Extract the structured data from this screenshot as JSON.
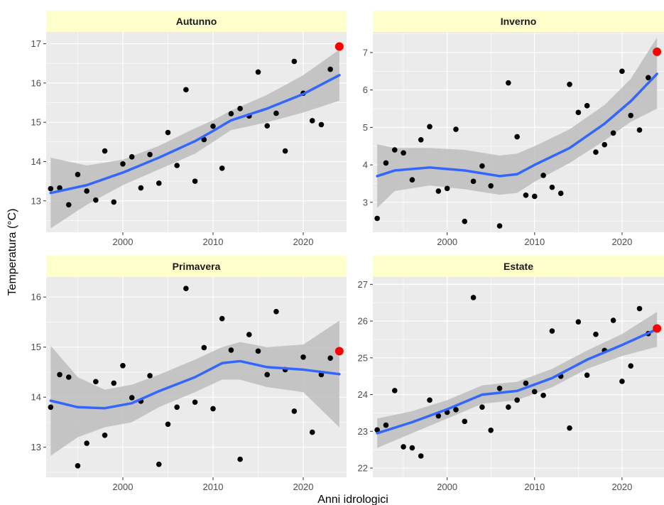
{
  "chart_data": {
    "type": "scatter",
    "xlabel": "Anni idrologici",
    "ylabel": "Temperatura (°C)",
    "xlim": [
      1991.5,
      2024.8
    ],
    "x_ticks": [
      2000,
      2010,
      2020
    ],
    "grid": true,
    "colors": {
      "panel_bg": "#ebebeb",
      "grid": "#ffffff",
      "strip_bg": "#ffffcc",
      "point": "#000000",
      "highlight": "#ff0000",
      "smooth": "#3366ff",
      "ribbon": "#bdbdbd"
    },
    "panels": [
      {
        "title": "Autunno",
        "ylim": [
          12.2,
          17.3
        ],
        "y_ticks": [
          13,
          14,
          15,
          16,
          17
        ],
        "points": {
          "x": [
            1992,
            1993,
            1994,
            1995,
            1996,
            1997,
            1998,
            1999,
            2000,
            2001,
            2002,
            2003,
            2004,
            2005,
            2006,
            2007,
            2008,
            2009,
            2010,
            2011,
            2012,
            2013,
            2014,
            2015,
            2016,
            2017,
            2018,
            2019,
            2020,
            2021,
            2022,
            2023
          ],
          "y": [
            13.31,
            13.33,
            12.9,
            13.67,
            13.25,
            13.02,
            14.27,
            12.97,
            13.94,
            14.12,
            13.33,
            14.18,
            13.45,
            14.74,
            13.9,
            15.83,
            13.5,
            14.56,
            14.9,
            13.83,
            15.22,
            15.35,
            15.16,
            16.28,
            14.91,
            15.23,
            14.27,
            16.55,
            15.74,
            15.04,
            14.94,
            16.35
          ]
        },
        "highlight": {
          "x": 2024,
          "y": 16.93
        },
        "smooth": {
          "x": [
            1992,
            1996,
            2000,
            2004,
            2008,
            2010,
            2012,
            2016,
            2020,
            2024
          ],
          "y": [
            13.2,
            13.4,
            13.72,
            14.1,
            14.52,
            14.78,
            15.05,
            15.35,
            15.72,
            16.2
          ]
        },
        "band": {
          "x": [
            1992,
            1996,
            2000,
            2004,
            2008,
            2010,
            2012,
            2016,
            2020,
            2024
          ],
          "low": [
            12.3,
            12.9,
            13.4,
            13.8,
            14.2,
            14.5,
            14.8,
            15.0,
            15.25,
            15.55
          ],
          "high": [
            14.1,
            13.9,
            14.05,
            14.4,
            14.85,
            15.05,
            15.3,
            15.7,
            16.2,
            16.85
          ]
        }
      },
      {
        "title": "Inverno",
        "ylim": [
          2.2,
          7.55
        ],
        "y_ticks": [
          3,
          4,
          5,
          6,
          7
        ],
        "points": {
          "x": [
            1992,
            1993,
            1994,
            1995,
            1996,
            1997,
            1998,
            1999,
            2000,
            2001,
            2002,
            2003,
            2004,
            2005,
            2006,
            2007,
            2008,
            2009,
            2010,
            2011,
            2012,
            2013,
            2014,
            2015,
            2016,
            2017,
            2018,
            2019,
            2020,
            2021,
            2022,
            2023
          ],
          "y": [
            2.57,
            4.05,
            4.4,
            4.32,
            3.6,
            4.67,
            5.02,
            3.3,
            3.37,
            4.95,
            2.49,
            3.56,
            3.97,
            3.44,
            2.37,
            6.19,
            4.75,
            3.19,
            3.16,
            3.72,
            3.4,
            3.24,
            6.15,
            5.4,
            5.58,
            4.34,
            4.54,
            4.85,
            6.5,
            5.32,
            4.93,
            6.33
          ]
        },
        "highlight": {
          "x": 2024,
          "y": 7.02
        },
        "smooth": {
          "x": [
            1992,
            1994,
            1998,
            2002,
            2006,
            2008,
            2010,
            2014,
            2018,
            2021,
            2024
          ],
          "y": [
            3.7,
            3.85,
            3.93,
            3.85,
            3.7,
            3.75,
            4.0,
            4.45,
            5.1,
            5.7,
            6.43
          ]
        },
        "band": {
          "x": [
            1992,
            1994,
            1998,
            2002,
            2006,
            2008,
            2010,
            2014,
            2018,
            2021,
            2024
          ],
          "low": [
            2.85,
            3.3,
            3.45,
            3.35,
            3.2,
            3.25,
            3.55,
            4.05,
            4.65,
            5.15,
            5.5
          ],
          "high": [
            4.55,
            4.45,
            4.45,
            4.4,
            4.25,
            4.3,
            4.5,
            4.95,
            5.6,
            6.3,
            7.4
          ]
        }
      },
      {
        "title": "Primavera",
        "ylim": [
          12.4,
          16.4
        ],
        "y_ticks": [
          13,
          14,
          15,
          16
        ],
        "points": {
          "x": [
            1992,
            1993,
            1994,
            1995,
            1996,
            1997,
            1998,
            1999,
            2000,
            2001,
            2002,
            2003,
            2004,
            2005,
            2006,
            2007,
            2008,
            2009,
            2010,
            2011,
            2012,
            2013,
            2014,
            2015,
            2016,
            2017,
            2018,
            2019,
            2020,
            2021,
            2022,
            2023
          ],
          "y": [
            13.8,
            14.45,
            14.4,
            12.63,
            13.08,
            14.31,
            13.24,
            14.28,
            14.63,
            13.99,
            13.92,
            14.43,
            12.66,
            13.46,
            13.8,
            16.17,
            13.9,
            14.99,
            13.77,
            15.57,
            14.94,
            12.76,
            15.25,
            14.92,
            14.45,
            15.71,
            14.55,
            13.72,
            14.8,
            13.3,
            14.45,
            14.78
          ]
        },
        "highlight": {
          "x": 2024,
          "y": 14.92
        },
        "smooth": {
          "x": [
            1992,
            1995,
            1998,
            2001,
            2004,
            2008,
            2011,
            2013,
            2016,
            2020,
            2024
          ],
          "y": [
            13.93,
            13.8,
            13.78,
            13.88,
            14.12,
            14.4,
            14.68,
            14.72,
            14.6,
            14.55,
            14.46
          ]
        },
        "band": {
          "x": [
            1992,
            1995,
            1998,
            2001,
            2004,
            2008,
            2011,
            2013,
            2016,
            2020,
            2024
          ],
          "low": [
            12.83,
            13.2,
            13.4,
            13.5,
            13.8,
            14.1,
            14.35,
            14.35,
            14.2,
            14.1,
            13.4
          ],
          "high": [
            15.03,
            14.4,
            14.15,
            14.25,
            14.45,
            14.75,
            15.0,
            15.1,
            15.0,
            15.05,
            15.53
          ]
        }
      },
      {
        "title": "Estate",
        "ylim": [
          21.75,
          27.2
        ],
        "y_ticks": [
          22,
          23,
          24,
          25,
          26,
          27
        ],
        "points": {
          "x": [
            1992,
            1993,
            1994,
            1995,
            1996,
            1997,
            1998,
            1999,
            2000,
            2001,
            2002,
            2003,
            2004,
            2005,
            2006,
            2007,
            2008,
            2009,
            2010,
            2011,
            2012,
            2013,
            2014,
            2015,
            2016,
            2017,
            2018,
            2019,
            2020,
            2021,
            2022,
            2023
          ],
          "y": [
            23.04,
            23.17,
            24.11,
            22.58,
            22.55,
            22.33,
            23.85,
            23.42,
            23.52,
            23.59,
            23.27,
            26.64,
            23.66,
            23.03,
            24.17,
            23.66,
            23.85,
            24.31,
            24.08,
            23.98,
            25.73,
            24.5,
            23.09,
            25.98,
            24.53,
            25.64,
            25.2,
            26.02,
            24.36,
            24.78,
            26.34,
            25.66
          ]
        },
        "highlight": {
          "x": 2024,
          "y": 25.8
        },
        "smooth": {
          "x": [
            1992,
            1996,
            2000,
            2004,
            2006,
            2008,
            2012,
            2016,
            2020,
            2024
          ],
          "y": [
            22.95,
            23.25,
            23.6,
            24.0,
            24.05,
            24.1,
            24.45,
            24.95,
            25.35,
            25.78
          ]
        },
        "band": {
          "x": [
            1992,
            1996,
            2000,
            2004,
            2006,
            2008,
            2012,
            2016,
            2020,
            2024
          ],
          "low": [
            22.55,
            22.95,
            23.35,
            23.75,
            23.8,
            23.85,
            24.2,
            24.7,
            25.05,
            25.3
          ],
          "high": [
            23.35,
            23.55,
            23.85,
            24.25,
            24.3,
            24.35,
            24.7,
            25.2,
            25.65,
            26.25
          ]
        }
      }
    ]
  }
}
